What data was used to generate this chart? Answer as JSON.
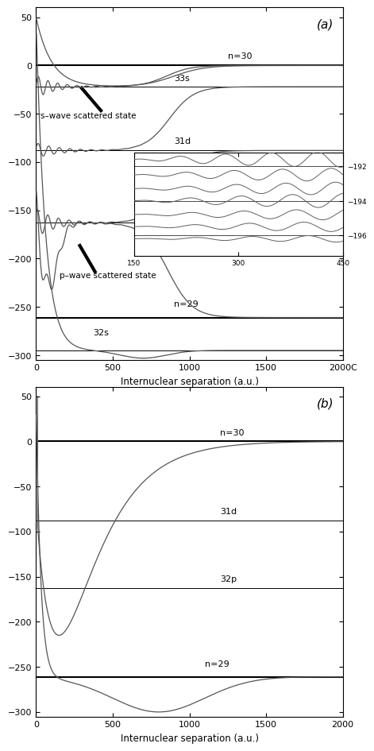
{
  "panel_a": {
    "xlim": [
      0,
      2000
    ],
    "ylim": [
      -305,
      60
    ],
    "yticks": [
      50,
      0,
      -50,
      -100,
      -150,
      -200,
      -250,
      -300
    ],
    "xticks": [
      0,
      500,
      1000,
      1500,
      2000
    ],
    "label": "(a)",
    "n30_level": 0.0,
    "n29_level": -261.0,
    "s33_asymptote": -22.0,
    "s31d_asymptote": -88.0,
    "s32p_asymptote": -163.0,
    "s32s_asymptote": -295.0
  },
  "panel_b": {
    "xlim": [
      0,
      2000
    ],
    "ylim": [
      -305,
      60
    ],
    "yticks": [
      50,
      0,
      -50,
      -100,
      -150,
      -200,
      -250,
      -300
    ],
    "xticks": [
      0,
      500,
      1000,
      1500,
      2000
    ],
    "label": "(b)",
    "n30_level": 0.0,
    "n29_level": -261.0,
    "d31d_asymptote": -88.0,
    "d32p_asymptote": -163.0
  },
  "inset": {
    "xlim": [
      150,
      450
    ],
    "ylim": [
      -197.2,
      -191.2
    ],
    "yticks": [
      -192,
      -194,
      -196
    ],
    "xticks": [
      150,
      300,
      450
    ]
  },
  "xlabel": "Internuclear separation (a.u.)",
  "line_color": "black",
  "curve_color": "#555555"
}
